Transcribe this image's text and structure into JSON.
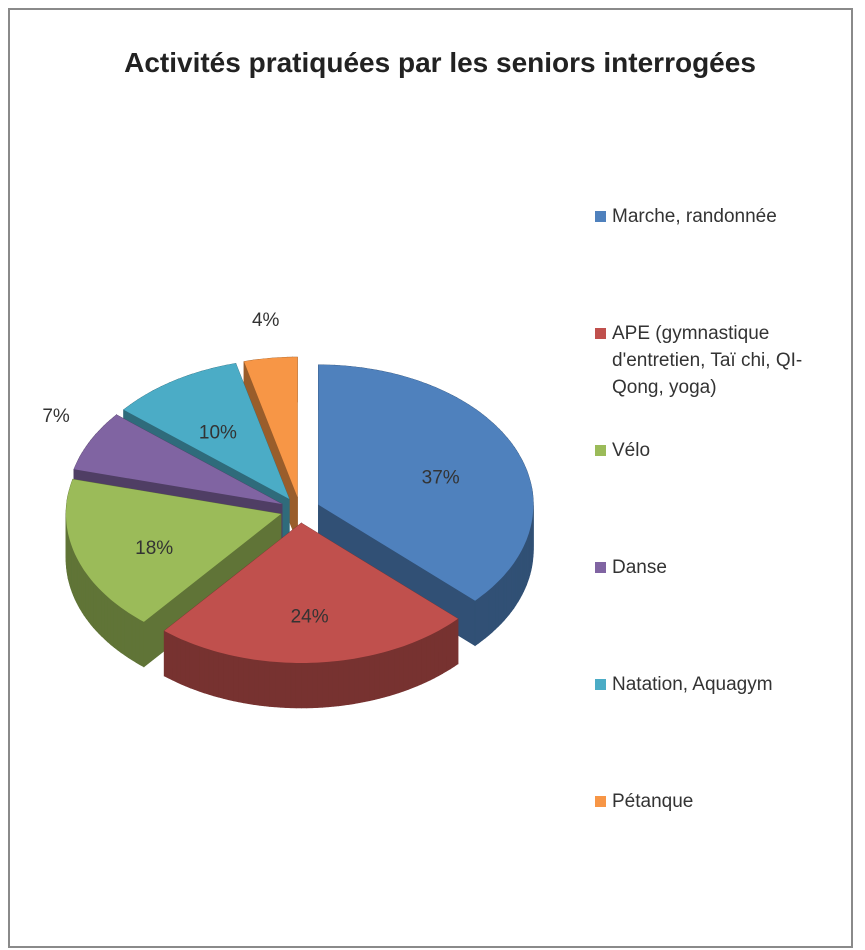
{
  "chart_data": {
    "type": "pie",
    "title": "Activités pratiquées par les seniors interrogées",
    "categories": [
      "Marche, randonnée",
      "APE (gymnastique d'entretien, Taï chi, QI-Qong, yoga)",
      "Vélo",
      "Danse",
      "Natation, Aquagym",
      "Pétanque"
    ],
    "values": [
      37,
      24,
      18,
      7,
      10,
      4
    ],
    "value_labels": [
      "37%",
      "24%",
      "18%",
      "7%",
      "10%",
      "4%"
    ],
    "colors": [
      "#4f81bd",
      "#c0504d",
      "#9bbb59",
      "#8064a2",
      "#4bacc6",
      "#f79646"
    ],
    "legend": "right"
  }
}
